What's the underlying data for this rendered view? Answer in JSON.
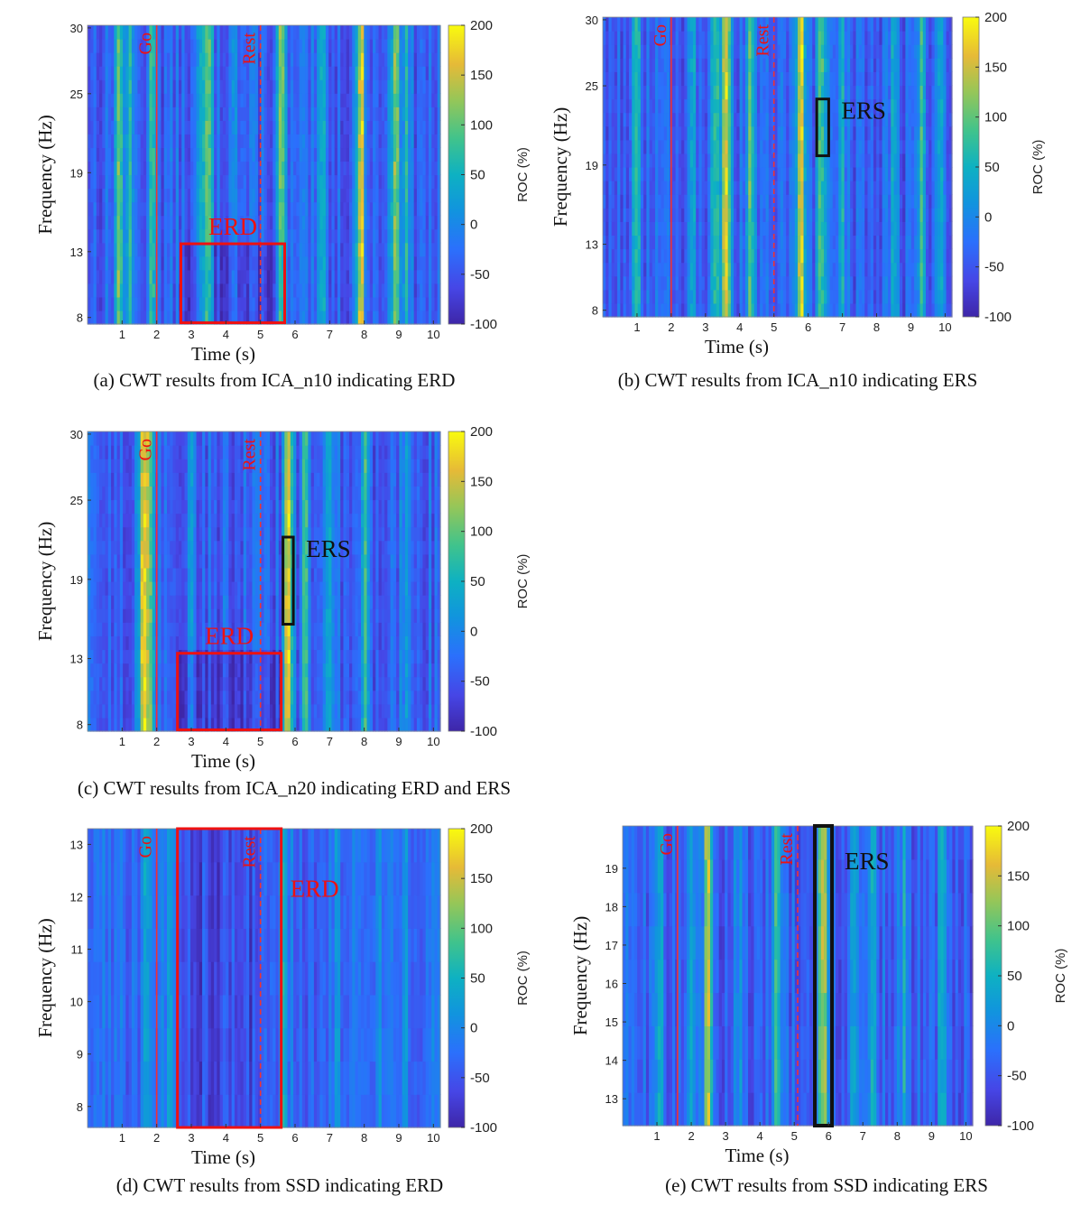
{
  "chart_data": [
    {
      "type": "heatmap",
      "id": "a",
      "caption": "(a) CWT results from ICA_n10 indicating ERD",
      "xlabel": "Time (s)",
      "ylabel": "Frequency (Hz)",
      "colorbar_label": "ROC (%)",
      "x_ticks": [
        1,
        2,
        3,
        4,
        5,
        6,
        7,
        8,
        9,
        10
      ],
      "y_ticks": [
        8,
        13,
        19,
        25,
        30
      ],
      "xlim": [
        0,
        10.2
      ],
      "ylim": [
        7.5,
        30.2
      ],
      "clim": [
        -100,
        200
      ],
      "cbar_ticks": [
        -100,
        -50,
        0,
        50,
        100,
        150,
        200
      ],
      "markers": [
        {
          "label": "Go",
          "x": 2.0,
          "style": "solid"
        },
        {
          "label": "Rest",
          "x": 5.0,
          "style": "dashed"
        }
      ],
      "annotations": [
        {
          "label": "ERD",
          "color": "red",
          "x0": 2.7,
          "x1": 5.7,
          "y0": 7.6,
          "y1": 13.6
        }
      ]
    },
    {
      "type": "heatmap",
      "id": "b",
      "caption": "(b) CWT results from ICA_n10 indicating ERS",
      "xlabel": "Time (s)",
      "ylabel": "Frequency (Hz)",
      "colorbar_label": "ROC (%)",
      "x_ticks": [
        1,
        2,
        3,
        4,
        5,
        6,
        7,
        8,
        9,
        10
      ],
      "y_ticks": [
        8,
        13,
        19,
        25,
        30
      ],
      "xlim": [
        0,
        10.2
      ],
      "ylim": [
        7.5,
        30.2
      ],
      "clim": [
        -100,
        200
      ],
      "cbar_ticks": [
        -100,
        -50,
        0,
        50,
        100,
        150,
        200
      ],
      "markers": [
        {
          "label": "Go",
          "x": 2.0,
          "style": "solid"
        },
        {
          "label": "Rest",
          "x": 5.0,
          "style": "dashed"
        }
      ],
      "annotations": [
        {
          "label": "ERS",
          "color": "black",
          "x0": 6.25,
          "x1": 6.6,
          "y0": 19.7,
          "y1": 24.0
        }
      ]
    },
    {
      "type": "heatmap",
      "id": "c",
      "caption": "(c) CWT results from ICA_n20 indicating ERD and ERS",
      "xlabel": "Time (s)",
      "ylabel": "Frequency (Hz)",
      "colorbar_label": "ROC (%)",
      "x_ticks": [
        1,
        2,
        3,
        4,
        5,
        6,
        7,
        8,
        9,
        10
      ],
      "y_ticks": [
        8,
        13,
        19,
        25,
        30
      ],
      "xlim": [
        0,
        10.2
      ],
      "ylim": [
        7.5,
        30.2
      ],
      "clim": [
        -100,
        200
      ],
      "cbar_ticks": [
        -100,
        -50,
        0,
        50,
        100,
        150,
        200
      ],
      "markers": [
        {
          "label": "Go",
          "x": 2.0,
          "style": "solid"
        },
        {
          "label": "Rest",
          "x": 5.0,
          "style": "dashed"
        }
      ],
      "annotations": [
        {
          "label": "ERD",
          "color": "red",
          "x0": 2.6,
          "x1": 5.6,
          "y0": 7.6,
          "y1": 13.4
        },
        {
          "label": "ERS",
          "color": "black",
          "x0": 5.65,
          "x1": 5.95,
          "y0": 15.6,
          "y1": 22.2
        }
      ]
    },
    {
      "type": "heatmap",
      "id": "d",
      "caption": "(d) CWT results from SSD indicating ERD",
      "xlabel": "Time (s)",
      "ylabel": "Frequency (Hz)",
      "colorbar_label": "ROC (%)",
      "x_ticks": [
        1,
        2,
        3,
        4,
        5,
        6,
        7,
        8,
        9,
        10
      ],
      "y_ticks": [
        8,
        9,
        10,
        11,
        12,
        13
      ],
      "xlim": [
        0,
        10.2
      ],
      "ylim": [
        7.6,
        13.3
      ],
      "clim": [
        -100,
        200
      ],
      "cbar_ticks": [
        -100,
        -50,
        0,
        50,
        100,
        150,
        200
      ],
      "markers": [
        {
          "label": "Go",
          "x": 2.0,
          "style": "solid"
        },
        {
          "label": "Rest",
          "x": 5.0,
          "style": "dashed"
        }
      ],
      "annotations": [
        {
          "label": "ERD",
          "color": "red",
          "x0": 2.6,
          "x1": 5.6,
          "y0": 7.6,
          "y1": 13.3
        }
      ]
    },
    {
      "type": "heatmap",
      "id": "e",
      "caption": "(e) CWT results from SSD indicating ERS",
      "xlabel": "Time (s)",
      "ylabel": "Frequency (Hz)",
      "colorbar_label": "ROC (%)",
      "x_ticks": [
        1,
        2,
        3,
        4,
        5,
        6,
        7,
        8,
        9,
        10
      ],
      "y_ticks": [
        13,
        14,
        15,
        16,
        17,
        18,
        19
      ],
      "xlim": [
        0,
        10.2
      ],
      "ylim": [
        12.3,
        20.1
      ],
      "clim": [
        -100,
        200
      ],
      "cbar_ticks": [
        -100,
        -50,
        0,
        50,
        100,
        150,
        200
      ],
      "markers": [
        {
          "label": "Go",
          "x": 1.6,
          "style": "solid"
        },
        {
          "label": "Rest",
          "x": 5.1,
          "style": "dashed"
        }
      ],
      "annotations": [
        {
          "label": "ERS",
          "color": "black",
          "x0": 5.6,
          "x1": 6.1,
          "y0": 12.3,
          "y1": 20.1
        }
      ]
    }
  ]
}
